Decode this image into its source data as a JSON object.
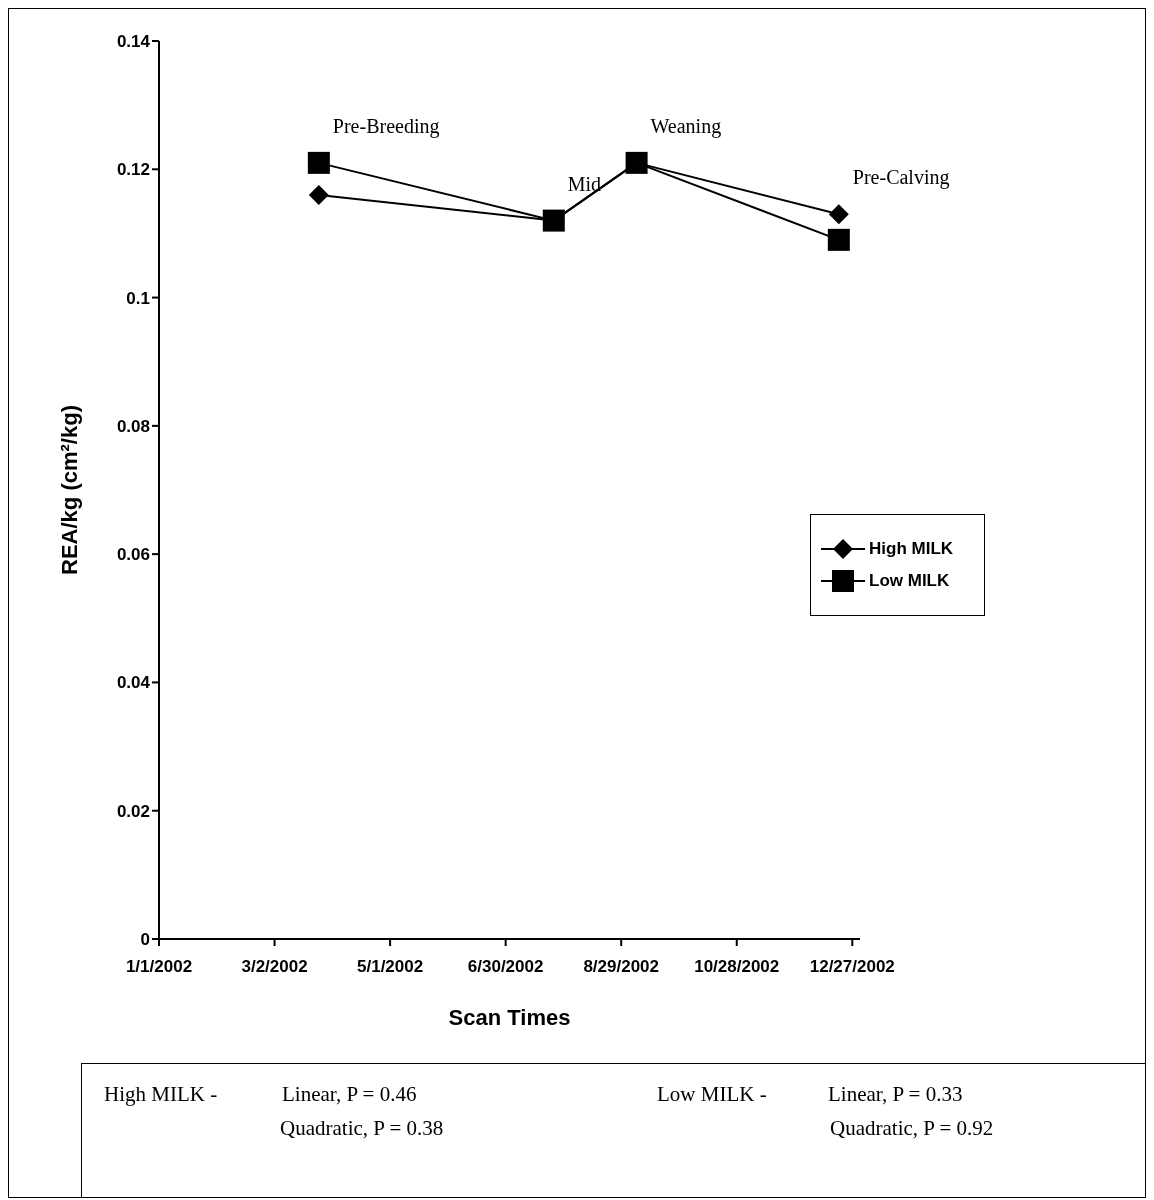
{
  "chart_data": {
    "type": "line",
    "xlabel": "Scan Times",
    "ylabel": "REA/kg (cm²/kg)",
    "x": [
      "2002-03-25",
      "2002-07-25",
      "2002-09-06",
      "2002-12-20"
    ],
    "series": [
      {
        "name": "High MILK",
        "color": "#000000",
        "marker": "diamond",
        "values": [
          0.116,
          0.112,
          0.121,
          0.113
        ]
      },
      {
        "name": "Low MILK",
        "color": "#000000",
        "marker": "square",
        "values": [
          0.121,
          0.112,
          0.121,
          0.109
        ]
      }
    ],
    "xlim": [
      "2002-01-01",
      "2002-12-31"
    ],
    "xticks": [
      {
        "value": "2002-01-01",
        "label": "1/1/2002"
      },
      {
        "value": "2002-03-02",
        "label": "3/2/2002"
      },
      {
        "value": "2002-05-01",
        "label": "5/1/2002"
      },
      {
        "value": "2002-06-30",
        "label": "6/30/2002"
      },
      {
        "value": "2002-08-29",
        "label": "8/29/2002"
      },
      {
        "value": "2002-10-28",
        "label": "10/28/2002"
      },
      {
        "value": "2002-12-27",
        "label": "12/27/2002"
      }
    ],
    "ylim": [
      0,
      0.14
    ],
    "yticks": [
      0,
      0.02,
      0.04,
      0.06,
      0.08,
      0.1,
      0.12,
      0.14
    ],
    "grid": false,
    "legend": "right",
    "line_style": "solid",
    "annotations": [
      {
        "text": "Pre-Breeding",
        "x": "2002-03-25",
        "y": 0.121
      },
      {
        "text": "Mid",
        "x": "2002-07-25",
        "y": 0.112
      },
      {
        "text": "Weaning",
        "x": "2002-09-06",
        "y": 0.121
      },
      {
        "text": "Pre-Calving",
        "x": "2002-12-20",
        "y": 0.113
      },
      "High MILK -",
      "Linear, P = 0.46",
      "Quadratic, P = 0.38",
      "Low MILK -",
      "Linear, P = 0.33",
      "Quadratic, P = 0.92"
    ]
  }
}
